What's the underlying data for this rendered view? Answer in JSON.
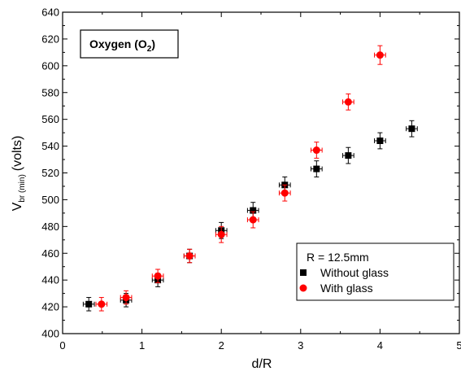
{
  "chart_data": {
    "type": "scatter",
    "xlabel": "d/R",
    "ylabel": {
      "main": "V",
      "subscript": "br (min)",
      "unit": "(volts)"
    },
    "annotation": {
      "main": "Oxygen (O",
      "subscript": "2",
      "close": ")"
    },
    "xlim": [
      0,
      5
    ],
    "ylim": [
      400,
      640
    ],
    "xticks": [
      0,
      1,
      2,
      3,
      4,
      5
    ],
    "yticks": [
      400,
      420,
      440,
      460,
      480,
      500,
      520,
      540,
      560,
      580,
      600,
      620,
      640
    ],
    "grid": false,
    "legend": {
      "placement": "bottom-right",
      "title": "R = 12.5mm"
    },
    "series": [
      {
        "name": "Without glass",
        "marker": "square",
        "color": "#000000",
        "x": [
          0.33,
          0.8,
          1.2,
          1.6,
          2.0,
          2.4,
          2.8,
          3.2,
          3.6,
          4.0,
          4.4
        ],
        "y": [
          422,
          425,
          440,
          458,
          477,
          492,
          511,
          523,
          533,
          544,
          553
        ],
        "xerr": [
          0.07,
          0.07,
          0.07,
          0.07,
          0.07,
          0.07,
          0.07,
          0.07,
          0.07,
          0.07,
          0.07
        ],
        "yerr": [
          5,
          5,
          5,
          5,
          6,
          6,
          6,
          6,
          6,
          6,
          6
        ]
      },
      {
        "name": "With glass",
        "marker": "circle",
        "color": "#ff0000",
        "x": [
          0.49,
          0.8,
          1.2,
          1.6,
          2.0,
          2.4,
          2.8,
          3.2,
          3.6,
          4.0
        ],
        "y": [
          422,
          427,
          443,
          458,
          474,
          485,
          505,
          537,
          573,
          608
        ],
        "xerr": [
          0.07,
          0.07,
          0.07,
          0.07,
          0.07,
          0.07,
          0.07,
          0.07,
          0.07,
          0.07
        ],
        "yerr": [
          5,
          5,
          5,
          5,
          6,
          6,
          6,
          6,
          6,
          7
        ]
      }
    ]
  }
}
